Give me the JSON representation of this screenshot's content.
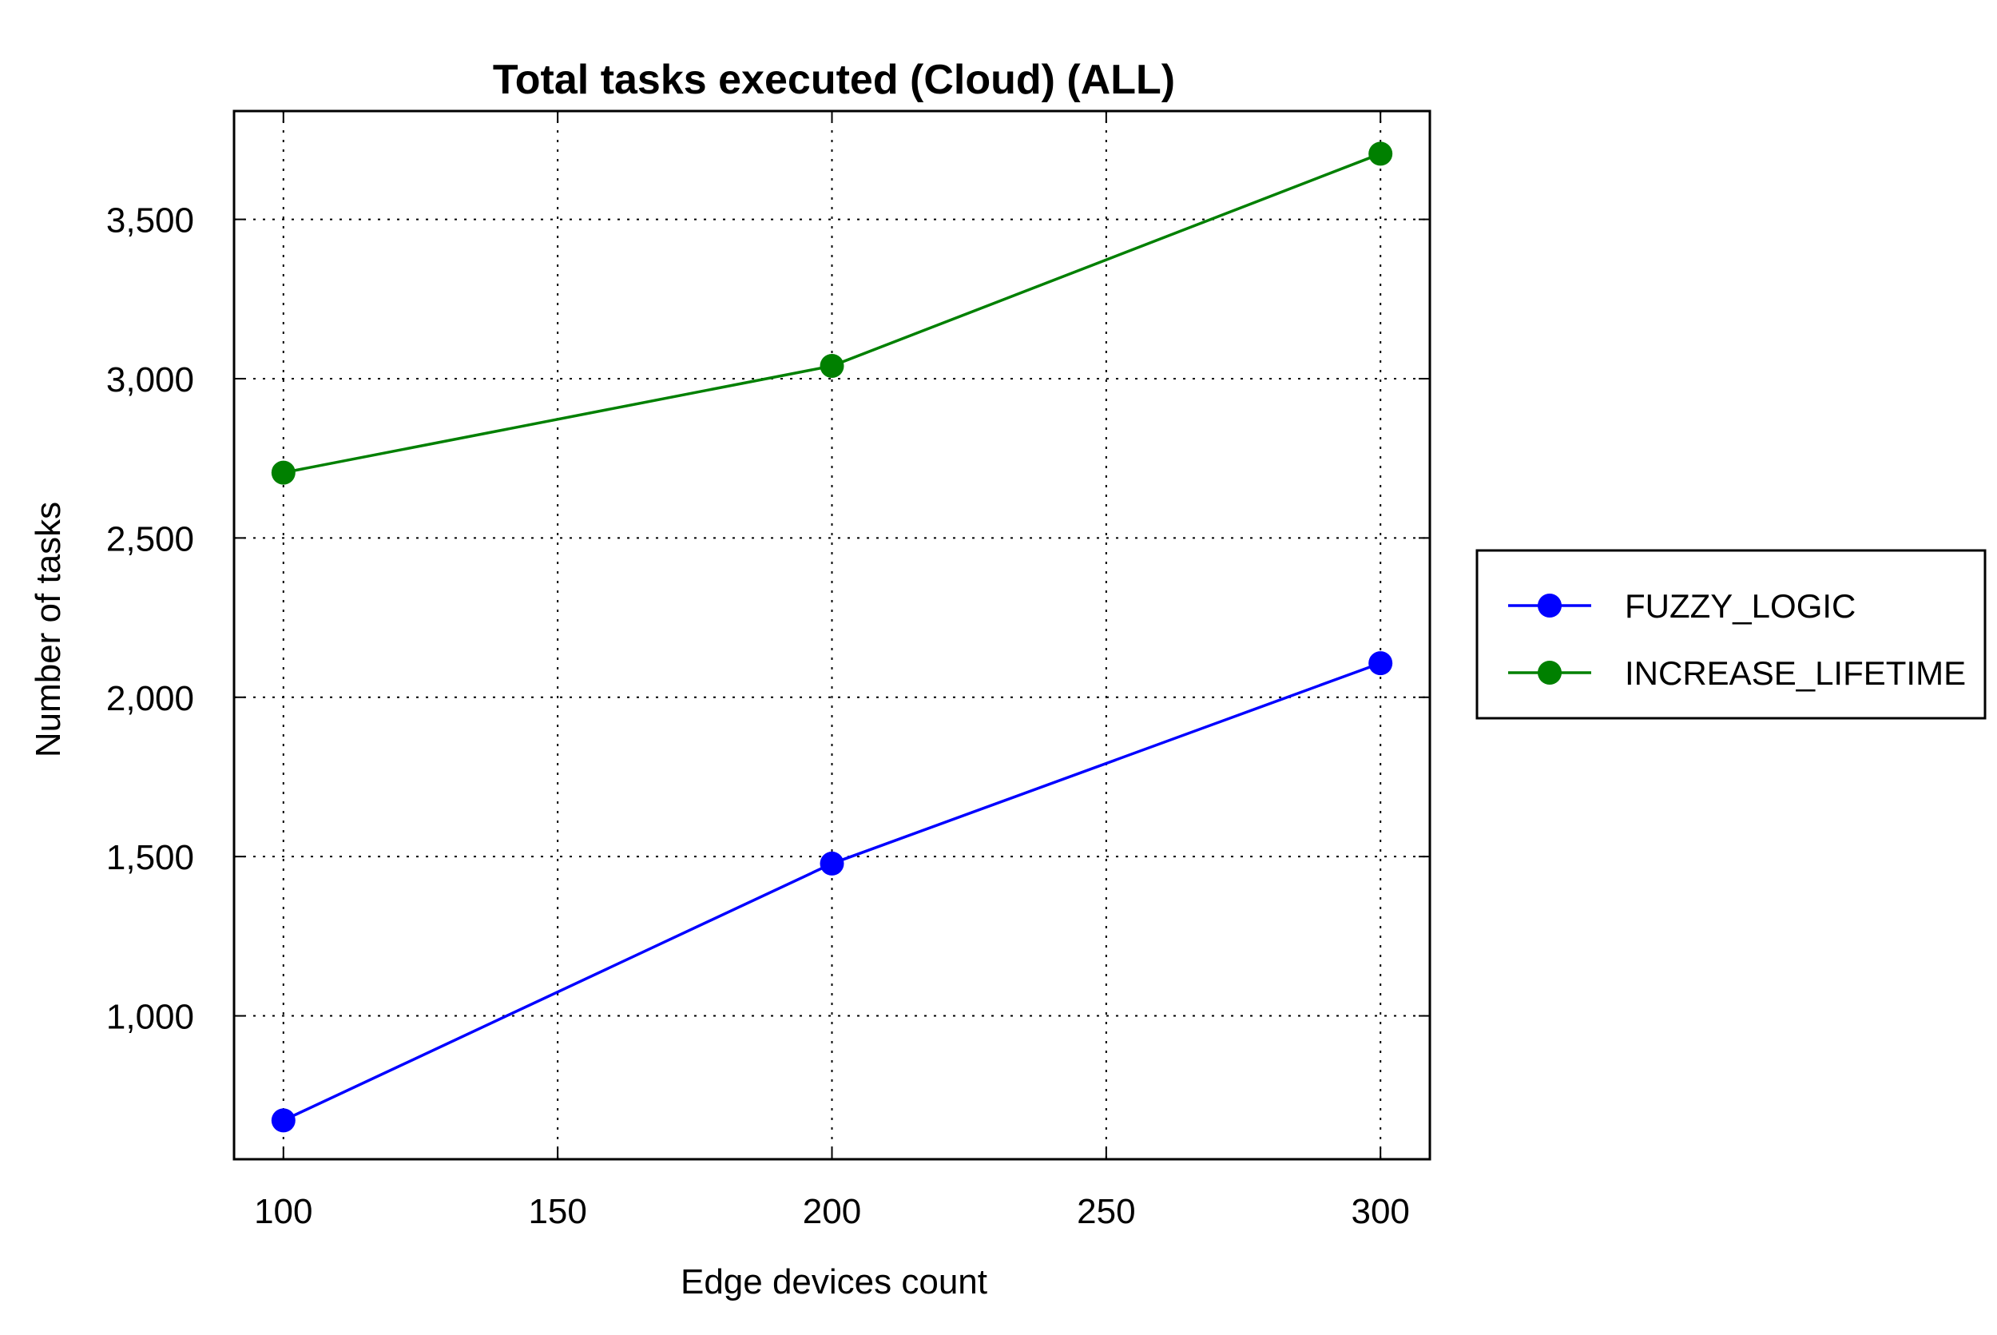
{
  "chart_data": {
    "type": "line",
    "title": "Total tasks executed (Cloud) (ALL)",
    "xlabel": "Edge devices count",
    "ylabel": "Number of tasks",
    "x": [
      100,
      200,
      300
    ],
    "xlim": [
      91,
      309
    ],
    "ylim": [
      550,
      3840
    ],
    "xticks": [
      100,
      150,
      200,
      250,
      300
    ],
    "xtick_labels": [
      "100",
      "150",
      "200",
      "250",
      "300"
    ],
    "yticks": [
      1000,
      1500,
      2000,
      2500,
      3000,
      3500
    ],
    "ytick_labels": [
      "1,000",
      "1,500",
      "2,000",
      "2,500",
      "3,000",
      "3,500"
    ],
    "grid": true,
    "legend_position": "right",
    "series": [
      {
        "name": "FUZZY_LOGIC",
        "color": "#0000ff",
        "values": [
          672,
          1478,
          2107
        ]
      },
      {
        "name": "INCREASE_LIFETIME",
        "color": "#008000",
        "values": [
          2705,
          3040,
          3706
        ]
      }
    ]
  }
}
